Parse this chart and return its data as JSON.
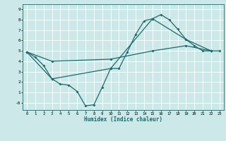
{
  "xlabel": "Humidex (Indice chaleur)",
  "bg_color": "#cce8e8",
  "line_color": "#1a6b6b",
  "grid_color": "#ffffff",
  "xlim": [
    -0.5,
    23.5
  ],
  "ylim": [
    -0.7,
    9.5
  ],
  "xticks": [
    0,
    1,
    2,
    3,
    4,
    5,
    6,
    7,
    8,
    9,
    10,
    11,
    12,
    13,
    14,
    15,
    16,
    17,
    18,
    19,
    20,
    21,
    22,
    23
  ],
  "yticks": [
    0,
    1,
    2,
    3,
    4,
    5,
    6,
    7,
    8,
    9
  ],
  "ytick_labels": [
    "-0",
    "1",
    "2",
    "3",
    "4",
    "5",
    "6",
    "7",
    "8",
    "9"
  ],
  "series": [
    {
      "x": [
        0,
        1,
        2,
        3,
        4,
        5,
        6,
        7,
        8,
        9,
        10,
        11,
        12,
        13,
        14,
        15,
        16,
        17,
        18,
        19,
        20,
        21,
        22,
        23
      ],
      "y": [
        4.9,
        4.4,
        3.6,
        2.3,
        1.8,
        1.7,
        1.1,
        -0.3,
        -0.2,
        1.5,
        3.3,
        3.3,
        4.9,
        6.6,
        7.9,
        8.1,
        8.5,
        8.0,
        7.1,
        6.1,
        5.5,
        5.0,
        5.0,
        5.0
      ]
    },
    {
      "x": [
        0,
        3,
        10,
        15,
        19,
        22
      ],
      "y": [
        4.9,
        2.3,
        3.3,
        8.1,
        6.1,
        5.0
      ]
    },
    {
      "x": [
        0,
        3,
        10,
        15,
        19,
        22
      ],
      "y": [
        4.9,
        4.0,
        4.2,
        5.0,
        5.5,
        5.0
      ]
    }
  ]
}
